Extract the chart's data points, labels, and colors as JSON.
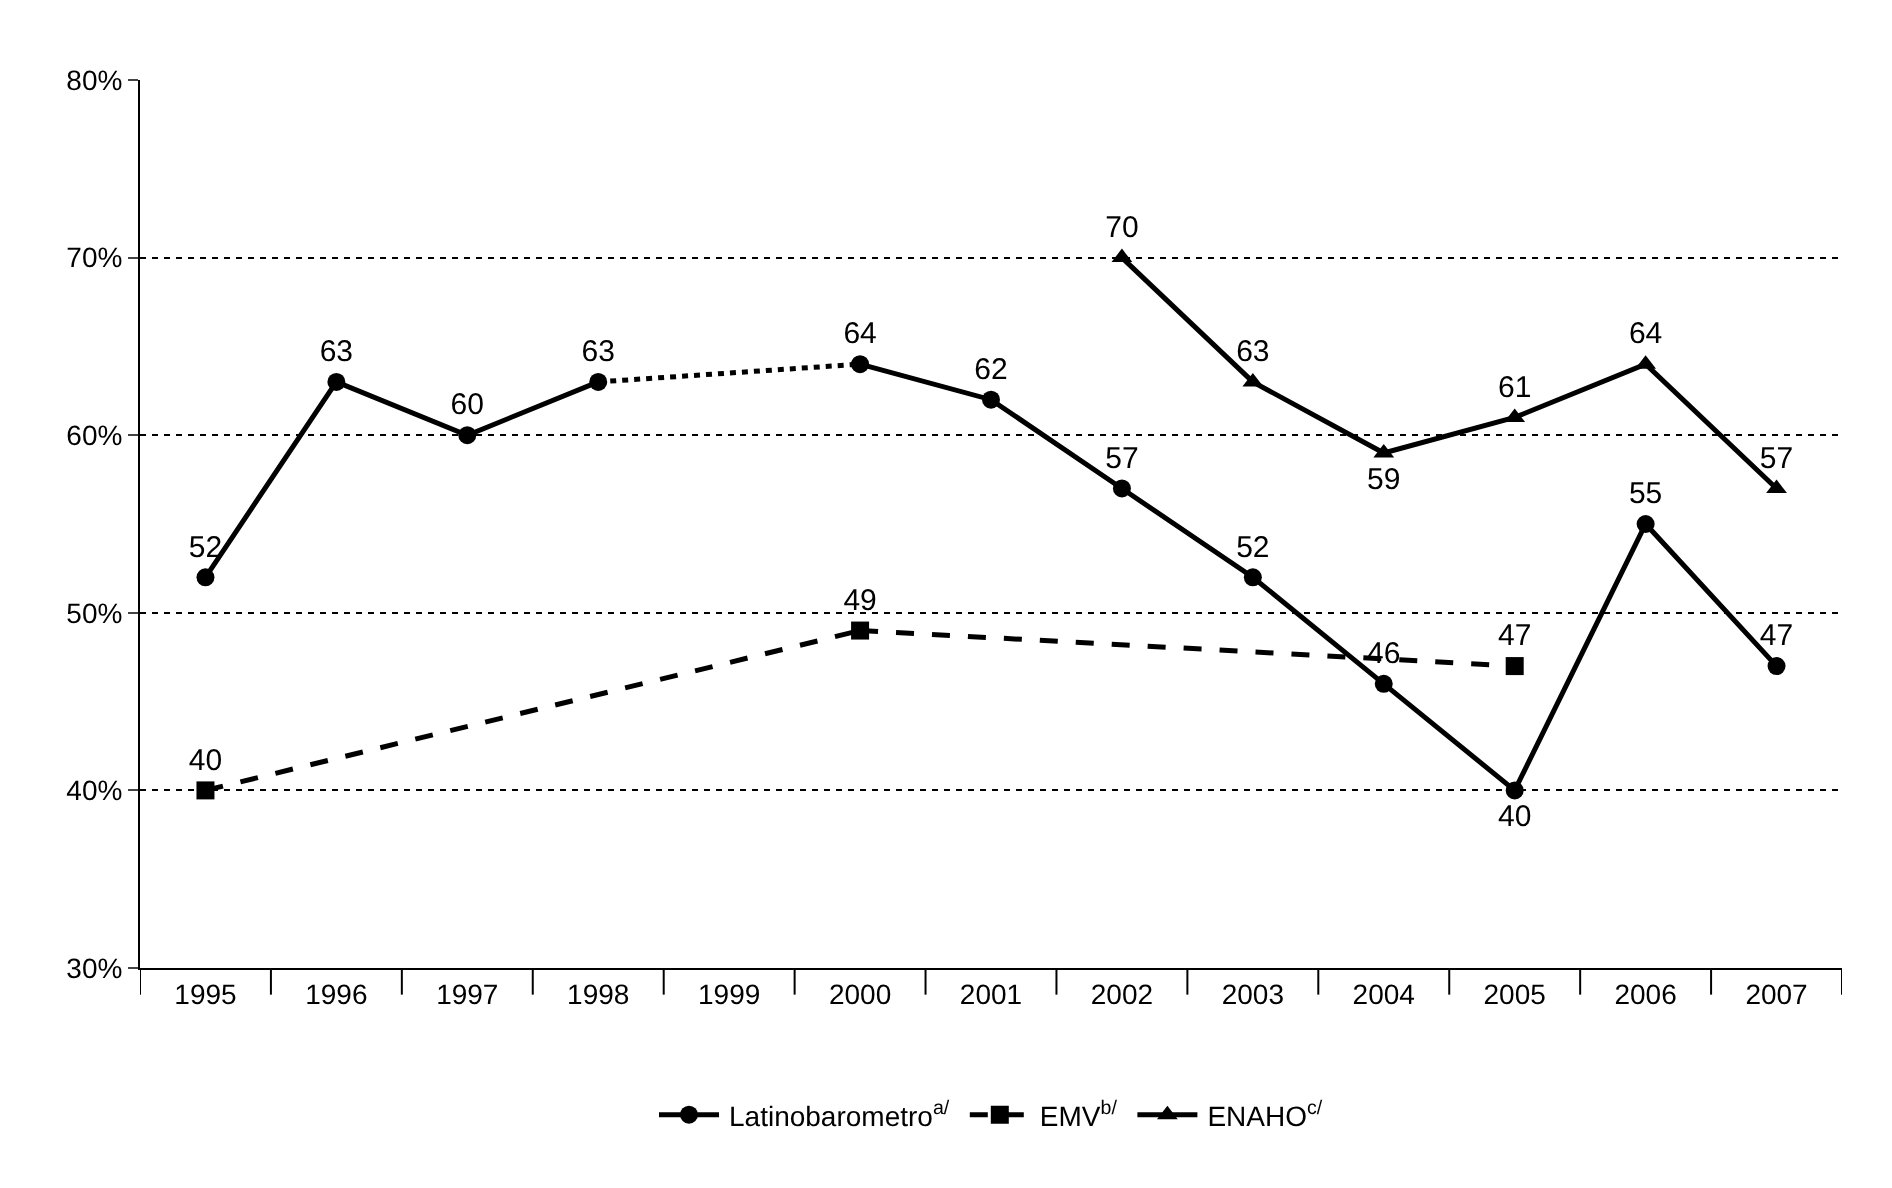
{
  "chart_data": {
    "type": "line",
    "categories": [
      "1995",
      "1996",
      "1997",
      "1998",
      "1999",
      "2000",
      "2001",
      "2002",
      "2003",
      "2004",
      "2005",
      "2006",
      "2007"
    ],
    "series": [
      {
        "name": "Latinobarometro$^{a/}$",
        "color": "#000000",
        "marker": "circle",
        "line_style": "solid",
        "values": [
          52,
          63,
          60,
          63,
          null,
          64,
          62,
          57,
          52,
          46,
          40,
          55,
          47
        ]
      },
      {
        "name": "EMV$^{b/}$",
        "color": "#000000",
        "marker": "square",
        "line_style": "dashed",
        "values": [
          40,
          null,
          null,
          null,
          null,
          49,
          null,
          null,
          null,
          null,
          47,
          null,
          null
        ]
      },
      {
        "name": "ENAHO$^{c/}$",
        "color": "#000000",
        "marker": "triangle",
        "line_style": "solid",
        "values": [
          null,
          null,
          null,
          null,
          null,
          null,
          null,
          70,
          63,
          59,
          61,
          64,
          57
        ]
      }
    ],
    "ylim": [
      30,
      80
    ],
    "yticks": [
      {
        "value": 30,
        "label": "30%"
      },
      {
        "value": 40,
        "label": "40%"
      },
      {
        "value": 50,
        "label": "50%"
      },
      {
        "value": 60,
        "label": "60%"
      },
      {
        "value": 70,
        "label": "70%"
      },
      {
        "value": 80,
        "label": "80%"
      }
    ],
    "grid": "y",
    "legend": "bottom",
    "data_labels": true
  }
}
